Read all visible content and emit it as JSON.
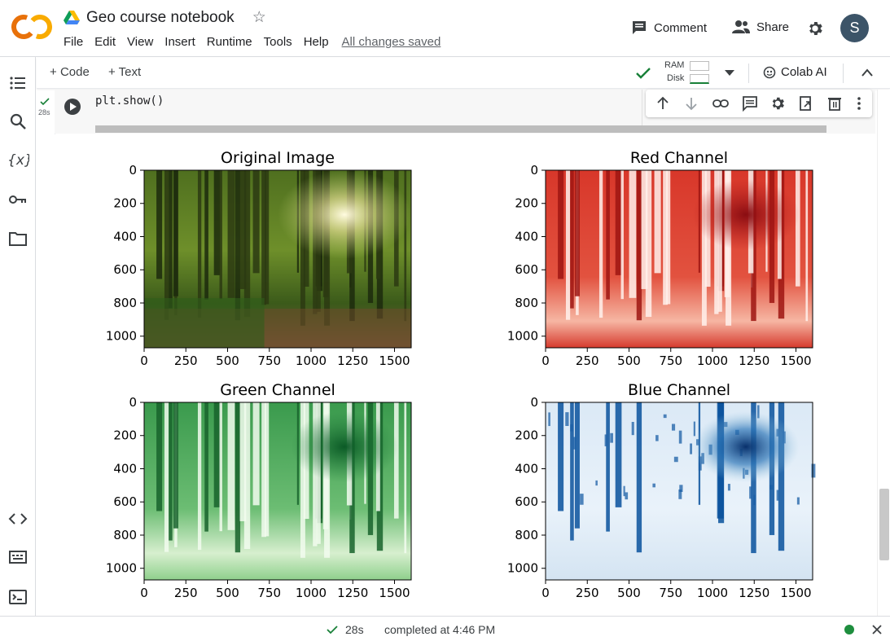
{
  "app": {
    "logo_text": "CO",
    "title": "Geo course notebook"
  },
  "menu": {
    "items": [
      "File",
      "Edit",
      "View",
      "Insert",
      "Runtime",
      "Tools",
      "Help"
    ],
    "saved_status": "All changes saved"
  },
  "header_actions": {
    "comment_label": "Comment",
    "share_label": "Share",
    "avatar_letter": "S"
  },
  "toolbar": {
    "add_code_label": "Code",
    "add_text_label": "Text",
    "ram_label": "RAM",
    "disk_label": "Disk",
    "colab_ai_label": "Colab AI"
  },
  "cell": {
    "exec_time": "28s",
    "code": "plt.show()"
  },
  "figure": {
    "subplots": [
      {
        "title": "Original Image",
        "colormap": "rgb"
      },
      {
        "title": "Red Channel",
        "colormap": "Reds"
      },
      {
        "title": "Green Channel",
        "colormap": "Greens"
      },
      {
        "title": "Blue Channel",
        "colormap": "Blues"
      }
    ],
    "x_ticks": [
      "0",
      "250",
      "500",
      "750",
      "1000",
      "1250",
      "1500"
    ],
    "y_ticks": [
      "0",
      "200",
      "400",
      "600",
      "800",
      "1000"
    ]
  },
  "status": {
    "time": "28s",
    "completed": "completed at 4:46 PM"
  },
  "colors": {
    "accent_check": "#188038",
    "status_dot": "#1e8e3e",
    "logo_orange": "#f9ab00",
    "logo_dark_orange": "#e8710a",
    "avatar_bg": "#3c5468"
  }
}
